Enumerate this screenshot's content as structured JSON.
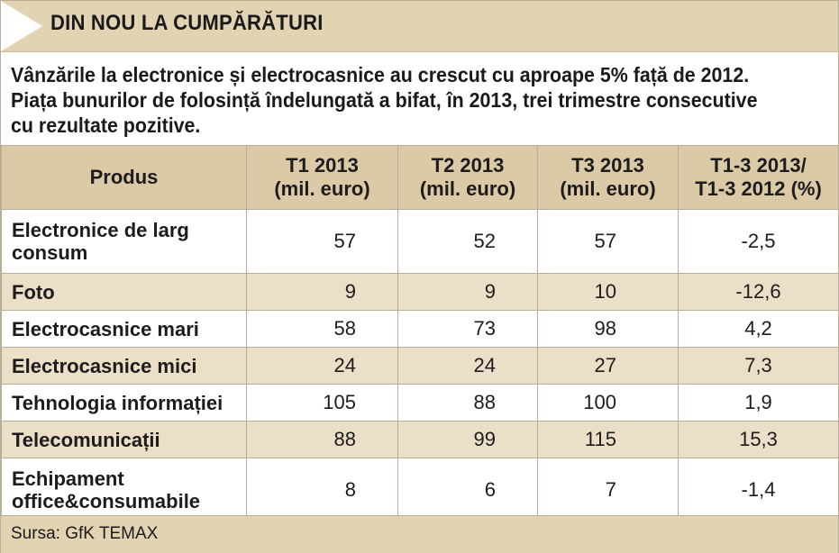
{
  "title": "DIN NOU LA CUMPĂRĂTURI",
  "lead_lines": [
    "Vânzările la electronice și electrocasnice au crescut cu aproape 5% față de 2012.",
    "Piața bunurilor de folosință îndelungată a bifat, în 2013, trei trimestre consecutive",
    "cu rezultate pozitive."
  ],
  "colors": {
    "header_bg": "#e2d3b3",
    "row_alt": "#ecdfc8",
    "table_header": "#dccaa7",
    "arrow": "#ffffff"
  },
  "chart_data": {
    "type": "table",
    "columns": [
      [
        "Produs"
      ],
      [
        "T1 2013",
        "(mil. euro)"
      ],
      [
        "T2 2013",
        "(mil. euro)"
      ],
      [
        "T3 2013",
        "(mil. euro)"
      ],
      [
        "T1-3 2013/",
        "T1-3 2012 (%)"
      ]
    ],
    "rows": [
      {
        "produs": [
          "Electronice de larg",
          "consum"
        ],
        "values": [
          "57",
          "52",
          "57",
          "-2,5"
        ]
      },
      {
        "produs": [
          "Foto"
        ],
        "values": [
          "9",
          "9",
          "10",
          "-12,6"
        ]
      },
      {
        "produs": [
          "Electrocasnice mari"
        ],
        "values": [
          "58",
          "73",
          "98",
          "4,2"
        ]
      },
      {
        "produs": [
          "Electrocasnice mici"
        ],
        "values": [
          "24",
          "24",
          "27",
          "7,3"
        ]
      },
      {
        "produs": [
          "Tehnologia informației"
        ],
        "values": [
          "105",
          "88",
          "100",
          "1,9"
        ]
      },
      {
        "produs": [
          "Telecomunicații"
        ],
        "values": [
          "88",
          "99",
          "115",
          "15,3"
        ]
      },
      {
        "produs": [
          "Echipament",
          "office&consumabile"
        ],
        "values": [
          "8",
          "6",
          "7",
          "-1,4"
        ]
      }
    ]
  },
  "source": "Sursa: GfK TEMAX"
}
